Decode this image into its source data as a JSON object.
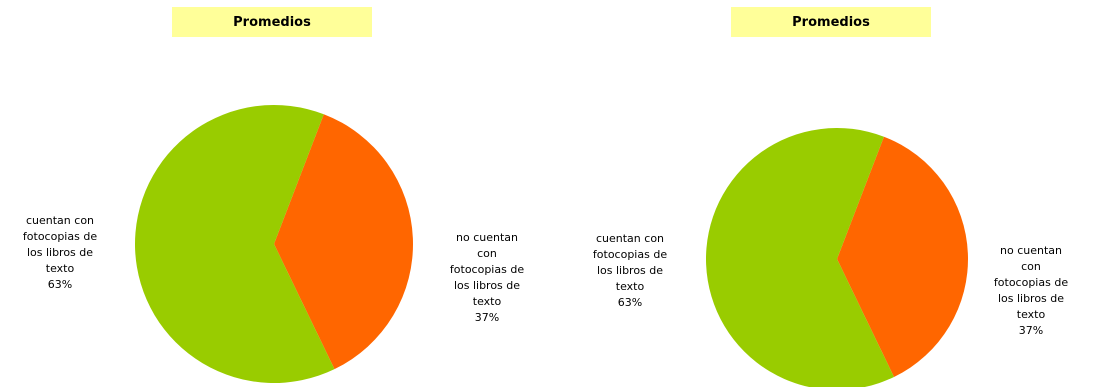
{
  "colors": {
    "title_bg": "#ffff99",
    "green": "#99cc00",
    "orange": "#ff6600"
  },
  "chart_data": [
    {
      "type": "pie",
      "title": "Promedios",
      "slices": [
        {
          "label": "cuentan con\nfotocopias de\nlos libros de\ntexto",
          "value": 63,
          "pct_label": "63%",
          "color": "#99cc00"
        },
        {
          "label": "no cuentan\ncon\nfotocopias de\nlos libros de\ntexto",
          "value": 37,
          "pct_label": "37%",
          "color": "#ff6600"
        }
      ]
    },
    {
      "type": "pie",
      "title": "Promedios",
      "slices": [
        {
          "label": "cuentan con\nfotocopias de\nlos libros de\ntexto",
          "value": 63,
          "pct_label": "63%",
          "color": "#99cc00"
        },
        {
          "label": "no cuentan\ncon\nfotocopias de\nlos libros de\ntexto",
          "value": 37,
          "pct_label": "37%",
          "color": "#ff6600"
        }
      ]
    }
  ]
}
